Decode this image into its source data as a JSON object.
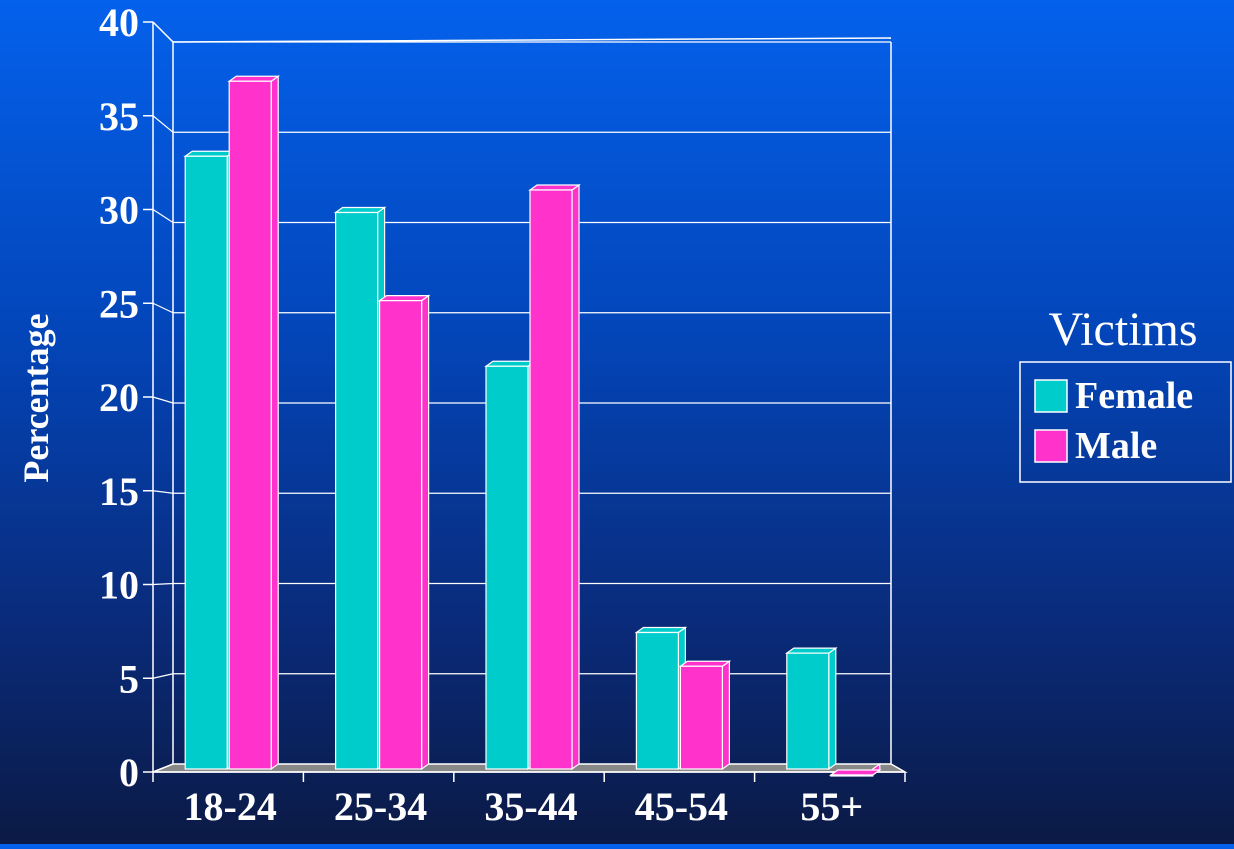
{
  "chart_data": {
    "type": "bar",
    "categories": [
      "18-24",
      "25-34",
      "35-44",
      "45-54",
      "55+"
    ],
    "series": [
      {
        "name": "Female",
        "values": [
          33,
          30,
          21.8,
          7.6,
          6.5
        ],
        "color": "#00cccc"
      },
      {
        "name": "Male",
        "values": [
          37,
          25.3,
          31.2,
          5.8,
          0
        ],
        "color": "#ff33cc"
      }
    ],
    "ylabel": "Percentage",
    "xlabel": "",
    "ylim": [
      0,
      40
    ],
    "yticks": [
      0,
      5,
      10,
      15,
      20,
      25,
      30,
      35,
      40
    ],
    "grid": true,
    "legend": {
      "title": "Victims",
      "position": "right"
    },
    "colors": {
      "axis": "#ffffff",
      "floor": "#888888",
      "bar_edge": "#ffffff"
    }
  }
}
